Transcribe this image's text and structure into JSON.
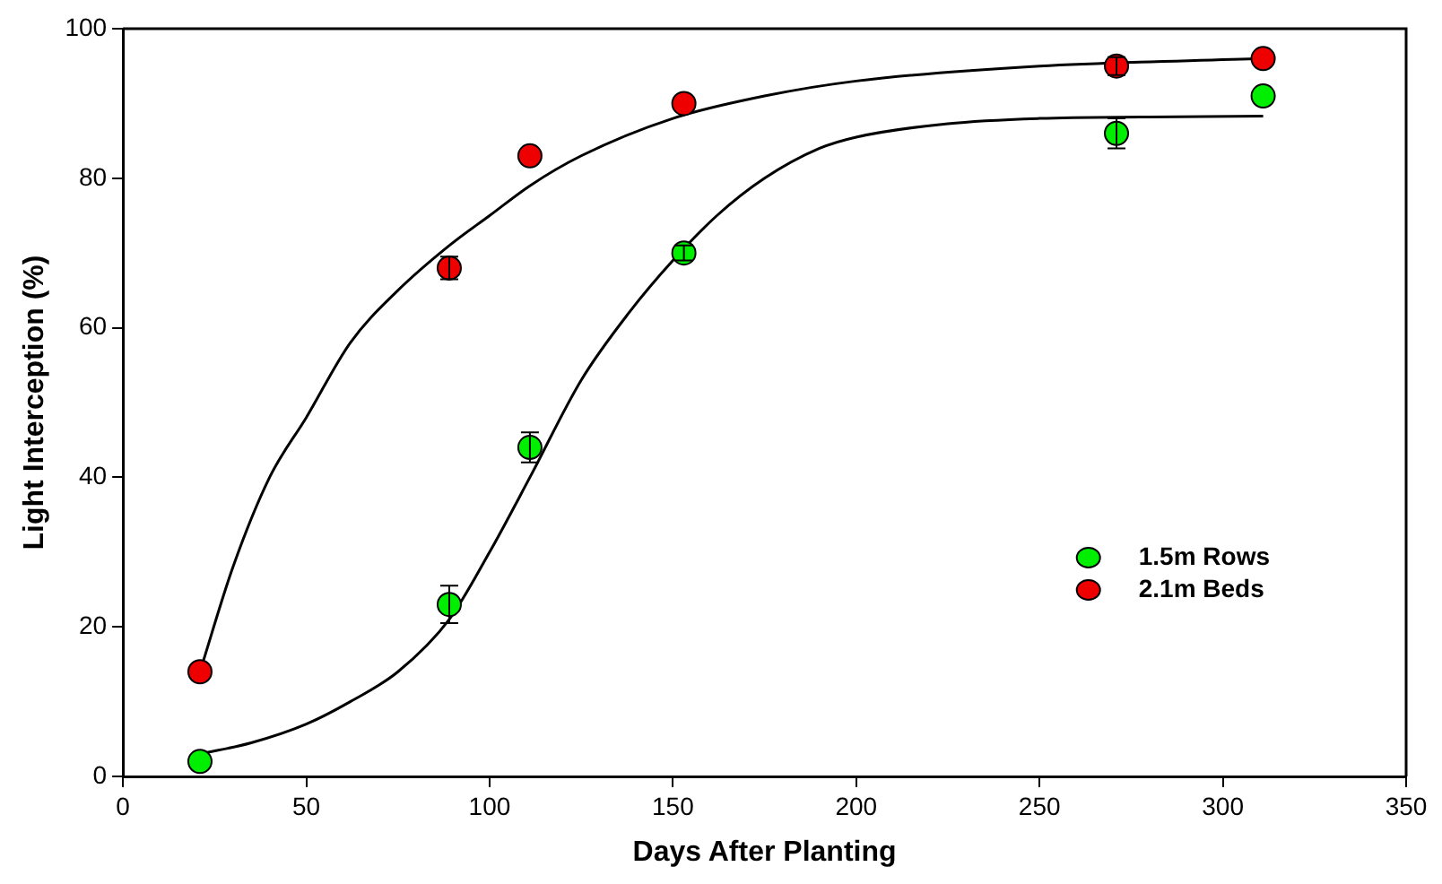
{
  "chart_data": {
    "type": "scatter",
    "xlabel": "Days After Planting",
    "ylabel": "Light Interception (%)",
    "xlim": [
      0,
      350
    ],
    "xticks": [
      0,
      50,
      100,
      150,
      200,
      250,
      300,
      350
    ],
    "ylim": [
      0,
      100
    ],
    "yticks": [
      0,
      20,
      40,
      60,
      80,
      100
    ],
    "grid": false,
    "legend": "bottom right",
    "marker": "circle",
    "series": [
      {
        "name": "1.5m Rows",
        "color": "#00ee00",
        "x": [
          21,
          89,
          111,
          153,
          271,
          311
        ],
        "values": [
          2,
          23,
          44,
          70,
          86,
          91
        ],
        "errors": [
          null,
          2.5,
          2,
          1,
          2,
          null
        ]
      },
      {
        "name": "2.1m Beds",
        "color": "#ee0000",
        "x": [
          21,
          89,
          111,
          153,
          271,
          311
        ],
        "values": [
          14,
          68,
          83,
          90,
          95,
          96
        ],
        "errors": [
          null,
          1.5,
          null,
          null,
          1.2,
          null
        ]
      },
      {
        "type": "line",
        "color": "#000000",
        "marker": "none",
        "x": [
          21,
          35,
          50,
          62,
          75,
          89,
          100,
          111,
          125,
          138,
          150,
          162,
          175,
          190,
          200,
          225,
          250,
          280,
          311
        ],
        "values": [
          3,
          4.5,
          7,
          10,
          14,
          21,
          30,
          40,
          53,
          62,
          69,
          75,
          80,
          84,
          85.5,
          87.3,
          88,
          88.2,
          88.3
        ]
      },
      {
        "type": "line",
        "color": "#000000",
        "marker": "none",
        "x": [
          21,
          30,
          40,
          50,
          62,
          75,
          89,
          100,
          111,
          125,
          150,
          175,
          200,
          250,
          311
        ],
        "values": [
          14,
          28,
          40,
          48,
          58,
          65,
          71,
          75,
          79,
          83,
          88,
          91,
          93,
          95,
          96
        ]
      }
    ]
  }
}
